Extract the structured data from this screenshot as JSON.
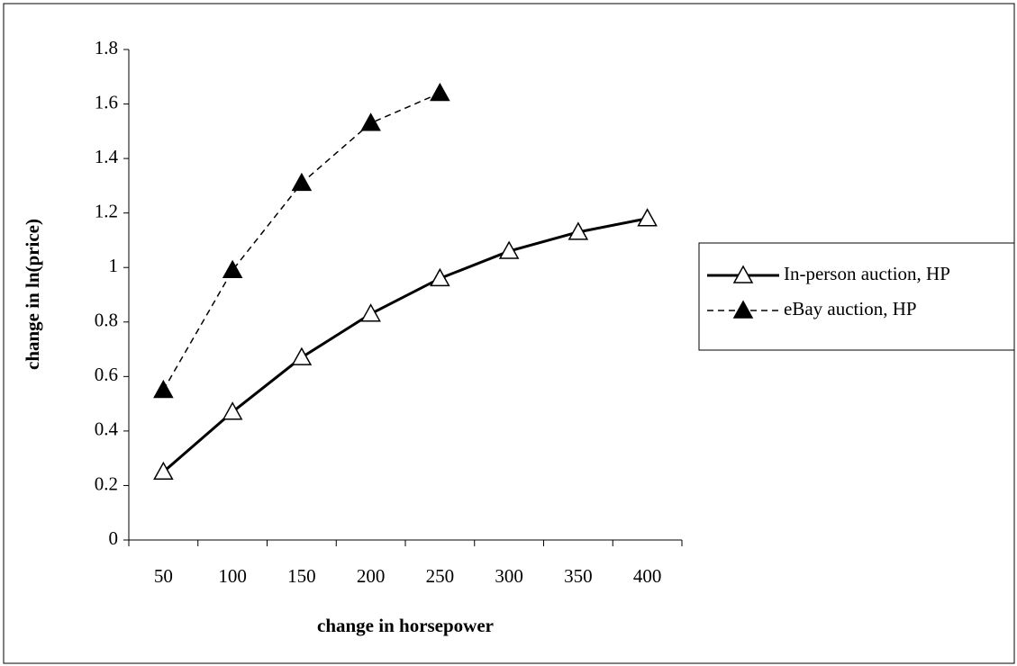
{
  "chart_data": {
    "type": "line",
    "x_label": "change in horsepower",
    "y_label": "change in ln(price)",
    "categories": [
      "50",
      "100",
      "150",
      "200",
      "250",
      "300",
      "350",
      "400"
    ],
    "series": [
      {
        "name": "In-person auction, HP",
        "color": "#000000",
        "linestyle": "solid",
        "marker": "triangle",
        "marker_fill": "#ffffff",
        "values": [
          0.25,
          0.47,
          0.67,
          0.83,
          0.96,
          1.06,
          1.13,
          1.18
        ]
      },
      {
        "name": "eBay auction, HP",
        "color": "#000000",
        "linestyle": "dashed",
        "marker": "triangle",
        "marker_fill": "#000000",
        "values": [
          0.55,
          0.99,
          1.31,
          1.53,
          1.64,
          null,
          null,
          null
        ]
      }
    ],
    "ylim": [
      0,
      1.8
    ],
    "yticks": [
      0,
      0.2,
      0.4,
      0.6,
      0.8,
      1,
      1.2,
      1.4,
      1.6,
      1.8
    ],
    "grid": false,
    "legend": "right"
  }
}
